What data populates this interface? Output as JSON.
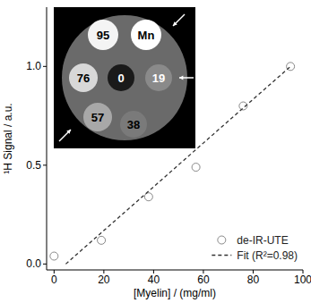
{
  "chart_data": {
    "type": "scatter",
    "x_label": "[Myelin] / (mg/ml)",
    "y_label": "¹H Signal / a.u.",
    "xlim": [
      -3,
      100
    ],
    "ylim": [
      -0.03,
      1.3
    ],
    "xticks": [
      0,
      20,
      40,
      60,
      80,
      100
    ],
    "yticks": [
      {
        "value": 0,
        "label": "0.0"
      },
      {
        "value": 0.5,
        "label": "0.5"
      },
      {
        "value": 1.0,
        "label": "1.0"
      }
    ],
    "legend": "lower right",
    "annotations": [
      "95",
      "Mn",
      "76",
      "0",
      "19",
      "57",
      "38"
    ],
    "series": [
      {
        "name": "de-IR-UTE",
        "type": "scatter",
        "marker": "circle",
        "color": "#ffffff",
        "x": [
          0,
          19,
          38,
          57,
          76,
          95
        ],
        "values": [
          0.04,
          0.12,
          0.34,
          0.49,
          0.8,
          1.0
        ]
      },
      {
        "name": "Fit (R²=0.98)",
        "type": "line",
        "line_style": "dashed",
        "color": "#333333",
        "x": [
          4.7,
          95
        ],
        "values": [
          0,
          1.0
        ]
      }
    ]
  }
}
